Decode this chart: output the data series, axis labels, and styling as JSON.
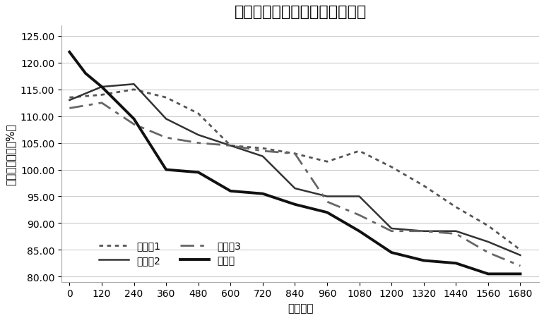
{
  "title": "各实施例与对比例循环容量对比",
  "xlabel": "循环次数",
  "ylabel": "与额定容量比（%）",
  "xlim": [
    -30,
    1750
  ],
  "ylim": [
    79,
    127
  ],
  "yticks": [
    80.0,
    85.0,
    90.0,
    95.0,
    100.0,
    105.0,
    110.0,
    115.0,
    120.0,
    125.0
  ],
  "xticks": [
    0,
    120,
    240,
    360,
    480,
    600,
    720,
    840,
    960,
    1080,
    1200,
    1320,
    1440,
    1560,
    1680
  ],
  "series": {
    "实施例1": {
      "x": [
        0,
        120,
        240,
        360,
        480,
        600,
        720,
        840,
        960,
        1080,
        1200,
        1320,
        1440,
        1560,
        1680
      ],
      "y": [
        113.5,
        114.0,
        115.0,
        113.5,
        110.5,
        104.5,
        104.0,
        103.0,
        101.5,
        103.5,
        100.5,
        97.0,
        93.0,
        89.5,
        85.0
      ],
      "linestyle": "dotted",
      "color": "#555555",
      "linewidth": 2.0
    },
    "实施例2": {
      "x": [
        0,
        120,
        240,
        360,
        480,
        600,
        720,
        840,
        960,
        1080,
        1200,
        1320,
        1440,
        1560,
        1680
      ],
      "y": [
        113.0,
        115.5,
        116.0,
        109.5,
        106.5,
        104.5,
        102.5,
        96.5,
        95.0,
        95.0,
        89.0,
        88.5,
        88.5,
        86.5,
        84.0
      ],
      "linestyle": "solid",
      "color": "#333333",
      "linewidth": 1.8
    },
    "实施例3": {
      "x": [
        0,
        120,
        240,
        360,
        480,
        600,
        720,
        840,
        960,
        1080,
        1200,
        1320,
        1440,
        1560,
        1680
      ],
      "y": [
        111.5,
        112.5,
        108.5,
        106.0,
        105.0,
        104.5,
        103.5,
        103.0,
        94.0,
        91.5,
        88.5,
        88.5,
        88.0,
        84.5,
        82.0
      ],
      "linestyle": "dashed",
      "color": "#666666",
      "linewidth": 2.0
    },
    "对比例": {
      "x": [
        0,
        60,
        120,
        240,
        360,
        480,
        600,
        720,
        840,
        960,
        1080,
        1200,
        1320,
        1440,
        1560,
        1680
      ],
      "y": [
        122.0,
        118.0,
        115.5,
        109.5,
        100.0,
        99.5,
        96.0,
        95.5,
        93.5,
        92.0,
        88.5,
        84.5,
        83.0,
        82.5,
        80.5,
        80.5
      ],
      "linestyle": "solid",
      "color": "#111111",
      "linewidth": 2.8
    }
  },
  "background_color": "#ffffff",
  "grid_color": "#cccccc",
  "title_fontsize": 16,
  "axis_fontsize": 11,
  "tick_fontsize": 10,
  "legend_order": [
    "实施例1",
    "实施例2",
    "实施例3",
    "对比例"
  ]
}
